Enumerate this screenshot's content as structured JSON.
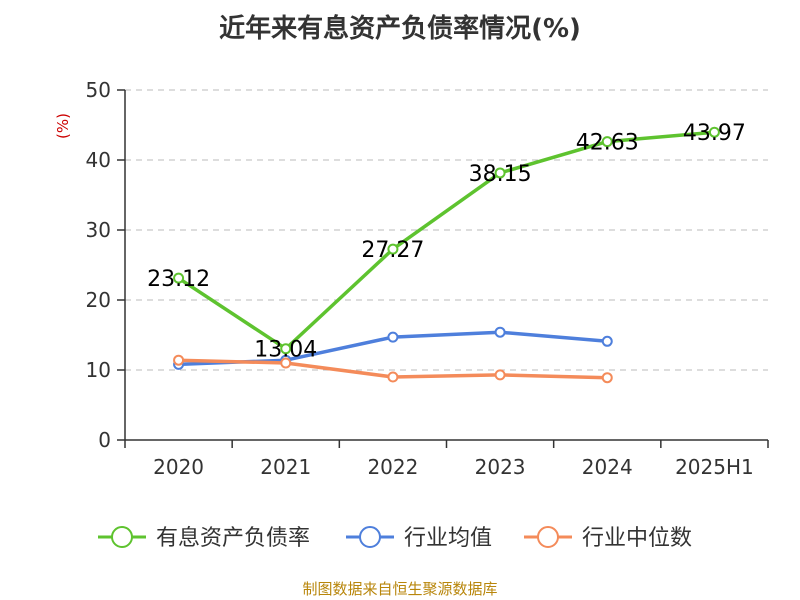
{
  "title": "近年来有息资产负债率情况(%)",
  "source": "制图数据来自恒生聚源数据库",
  "chart_data": {
    "type": "line",
    "title": "近年来有息资产负债率情况(%)",
    "ylabel": "(%)",
    "xlabel": "",
    "categories": [
      "2020",
      "2021",
      "2022",
      "2023",
      "2024",
      "2025H1"
    ],
    "ylim": [
      0,
      50
    ],
    "yticks": [
      0,
      10,
      20,
      30,
      40,
      50
    ],
    "grid": true,
    "legend_position": "bottom",
    "series": [
      {
        "name": "有息资产负债率",
        "color": "#5ec32f",
        "values": [
          23.12,
          13.04,
          27.27,
          38.15,
          42.63,
          43.97
        ],
        "labels": [
          "23.12",
          "13.04",
          "27.27",
          "38.15",
          "42.63",
          "43.97"
        ]
      },
      {
        "name": "行业均值",
        "color": "#4e7fdc",
        "values": [
          10.8,
          11.4,
          14.7,
          15.4,
          14.1,
          null
        ]
      },
      {
        "name": "行业中位数",
        "color": "#f48b5a",
        "values": [
          11.4,
          11.0,
          9.0,
          9.3,
          8.9,
          null
        ]
      }
    ]
  }
}
